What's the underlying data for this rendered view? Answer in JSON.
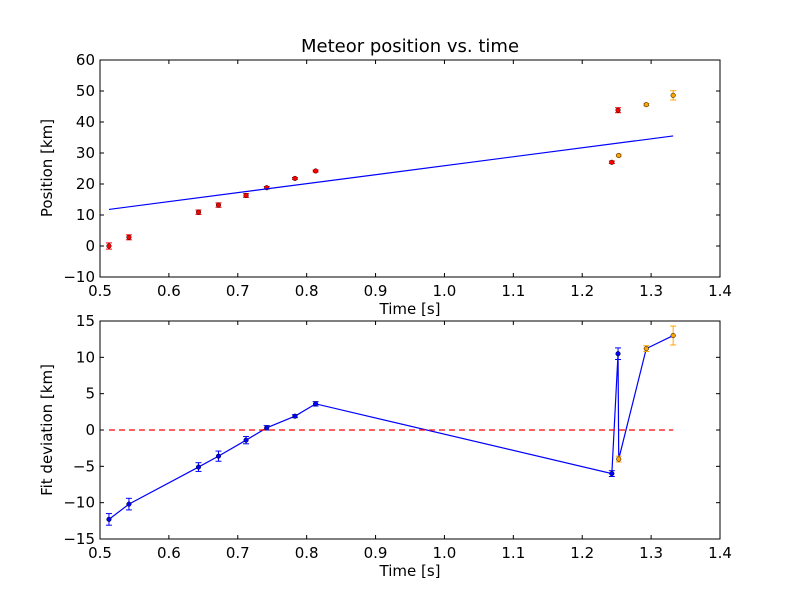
{
  "chart_data": [
    {
      "type": "scatter",
      "title": "Meteor position vs. time",
      "xlabel": "Time [s]",
      "ylabel": "Position [km]",
      "xlim": [
        0.5,
        1.4
      ],
      "ylim": [
        -10,
        60
      ],
      "xticks": [
        "0.5",
        "0.6",
        "0.7",
        "0.8",
        "0.9",
        "1.0",
        "1.1",
        "1.2",
        "1.3",
        "1.4"
      ],
      "yticks": [
        "−10",
        "0",
        "10",
        "20",
        "30",
        "40",
        "50",
        "60"
      ],
      "grid": false,
      "series": [
        {
          "kind": "errorbar-points",
          "color": "#ff0000",
          "points": [
            {
              "x": 0.513,
              "y": 0.0,
              "err": 1.0
            },
            {
              "x": 0.542,
              "y": 2.8,
              "err": 0.8
            },
            {
              "x": 0.643,
              "y": 10.9,
              "err": 0.7
            },
            {
              "x": 0.672,
              "y": 13.2,
              "err": 0.7
            },
            {
              "x": 0.712,
              "y": 16.3,
              "err": 0.6
            },
            {
              "x": 0.742,
              "y": 18.8,
              "err": 0.4
            },
            {
              "x": 0.783,
              "y": 21.8,
              "err": 0.3
            },
            {
              "x": 0.813,
              "y": 24.2,
              "err": 0.3
            },
            {
              "x": 1.243,
              "y": 27.0,
              "err": 0.4
            },
            {
              "x": 1.252,
              "y": 43.8,
              "err": 0.8
            }
          ]
        },
        {
          "kind": "errorbar-points",
          "color": "#ffa500",
          "points": [
            {
              "x": 1.253,
              "y": 29.2,
              "err": 0.4
            },
            {
              "x": 1.293,
              "y": 45.6,
              "err": 0.4
            },
            {
              "x": 1.332,
              "y": 48.6,
              "err": 1.5
            }
          ]
        },
        {
          "kind": "line",
          "color": "#0000ff",
          "points": [
            {
              "x": 0.513,
              "y": 11.8
            },
            {
              "x": 1.332,
              "y": 35.5
            }
          ]
        }
      ]
    },
    {
      "type": "line",
      "title": "",
      "xlabel": "Time [s]",
      "ylabel": "Fit deviation [km]",
      "xlim": [
        0.5,
        1.4
      ],
      "ylim": [
        -15,
        15
      ],
      "xticks": [
        "0.5",
        "0.6",
        "0.7",
        "0.8",
        "0.9",
        "1.0",
        "1.1",
        "1.2",
        "1.3",
        "1.4"
      ],
      "yticks": [
        "−15",
        "−10",
        "−5",
        "0",
        "5",
        "10",
        "15"
      ],
      "grid": false,
      "series": [
        {
          "kind": "errorbar-line",
          "color": "#0000ff",
          "points": [
            {
              "x": 0.513,
              "y": -12.3,
              "err": 0.8
            },
            {
              "x": 0.542,
              "y": -10.2,
              "err": 0.8
            },
            {
              "x": 0.643,
              "y": -5.1,
              "err": 0.6
            },
            {
              "x": 0.672,
              "y": -3.6,
              "err": 0.7
            },
            {
              "x": 0.712,
              "y": -1.4,
              "err": 0.5
            },
            {
              "x": 0.742,
              "y": 0.3,
              "err": 0.3
            },
            {
              "x": 0.783,
              "y": 1.9,
              "err": 0.2
            },
            {
              "x": 0.813,
              "y": 3.6,
              "err": 0.3
            },
            {
              "x": 1.243,
              "y": -6.0,
              "err": 0.4
            },
            {
              "x": 1.252,
              "y": 10.5,
              "err": 0.8
            },
            {
              "x": 1.253,
              "y": -4.0,
              "err": 0.4
            },
            {
              "x": 1.293,
              "y": 11.2,
              "err": 0.4
            },
            {
              "x": 1.332,
              "y": 13.0,
              "err": 1.3
            }
          ],
          "marker_colors": [
            "#0000ff",
            "#0000ff",
            "#0000ff",
            "#0000ff",
            "#0000ff",
            "#0000ff",
            "#0000ff",
            "#0000ff",
            "#0000ff",
            "#0000ff",
            "#ffa500",
            "#ffa500",
            "#ffa500"
          ]
        },
        {
          "kind": "dashed-line",
          "color": "#ff0000",
          "points": [
            {
              "x": 0.513,
              "y": 0
            },
            {
              "x": 1.332,
              "y": 0
            }
          ]
        }
      ]
    }
  ]
}
